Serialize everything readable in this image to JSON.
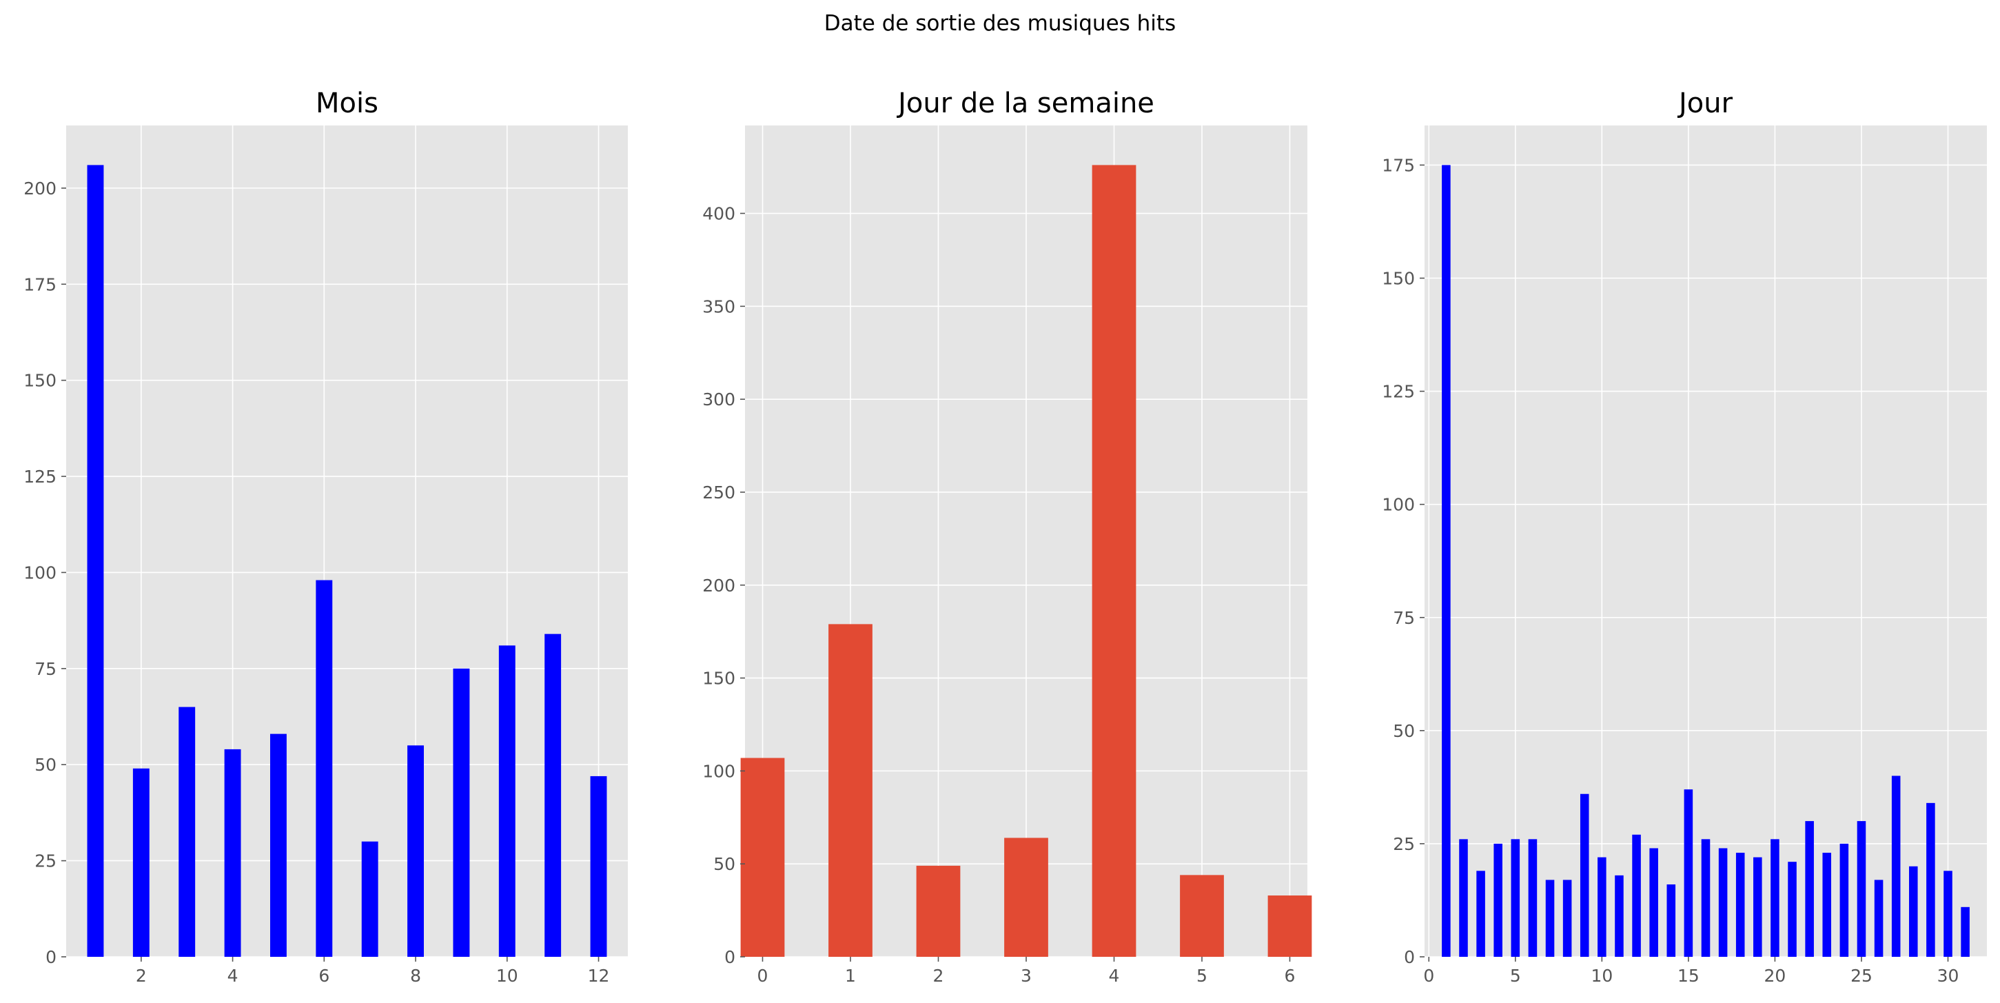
{
  "figure": {
    "suptitle": "Date de sortie des musiques hits"
  },
  "chart_data": [
    {
      "type": "bar",
      "title": "Mois",
      "xlabel": "",
      "ylabel": "",
      "color": "#0000ff",
      "background": "#e5e5e5",
      "grid": true,
      "x": [
        1,
        2,
        3,
        4,
        5,
        6,
        7,
        8,
        9,
        10,
        11,
        12
      ],
      "values": [
        206,
        49,
        65,
        54,
        58,
        98,
        30,
        55,
        75,
        81,
        84,
        47
      ],
      "bar_width": 0.36,
      "xlim": [
        0.36,
        12.64
      ],
      "ylim": [
        0,
        216.3
      ],
      "xticks": [
        2,
        4,
        6,
        8,
        10,
        12
      ],
      "yticks": [
        0,
        25,
        50,
        75,
        100,
        125,
        150,
        175,
        200
      ]
    },
    {
      "type": "bar",
      "title": "Jour de la semaine",
      "xlabel": "",
      "ylabel": "",
      "color": "#e24a33",
      "background": "#e5e5e5",
      "grid": true,
      "x": [
        0,
        1,
        2,
        3,
        4,
        5,
        6
      ],
      "values": [
        107,
        179,
        49,
        64,
        426,
        44,
        33
      ],
      "bar_width": 0.5,
      "xlim": [
        -0.2,
        6.2
      ],
      "ylim": [
        0,
        447.3
      ],
      "xticks": [
        0,
        1,
        2,
        3,
        4,
        5,
        6
      ],
      "yticks": [
        0,
        50,
        100,
        150,
        200,
        250,
        300,
        350,
        400
      ]
    },
    {
      "type": "bar",
      "title": "Jour",
      "xlabel": "",
      "ylabel": "",
      "color": "#0000ff",
      "background": "#e5e5e5",
      "grid": true,
      "x": [
        1,
        2,
        3,
        4,
        5,
        6,
        7,
        8,
        9,
        10,
        11,
        12,
        13,
        14,
        15,
        16,
        17,
        18,
        19,
        20,
        21,
        22,
        23,
        24,
        25,
        26,
        27,
        28,
        29,
        30,
        31
      ],
      "values": [
        175,
        26,
        19,
        25,
        26,
        26,
        17,
        17,
        36,
        22,
        18,
        27,
        24,
        16,
        37,
        26,
        24,
        23,
        22,
        26,
        21,
        30,
        23,
        25,
        30,
        17,
        40,
        20,
        34,
        19,
        11
      ],
      "bar_width": 0.5,
      "xlim": [
        -0.25,
        32.25
      ],
      "ylim": [
        0,
        183.75
      ],
      "xticks": [
        0,
        5,
        10,
        15,
        20,
        25,
        30
      ],
      "yticks": [
        0,
        25,
        50,
        75,
        100,
        125,
        150,
        175
      ]
    }
  ]
}
